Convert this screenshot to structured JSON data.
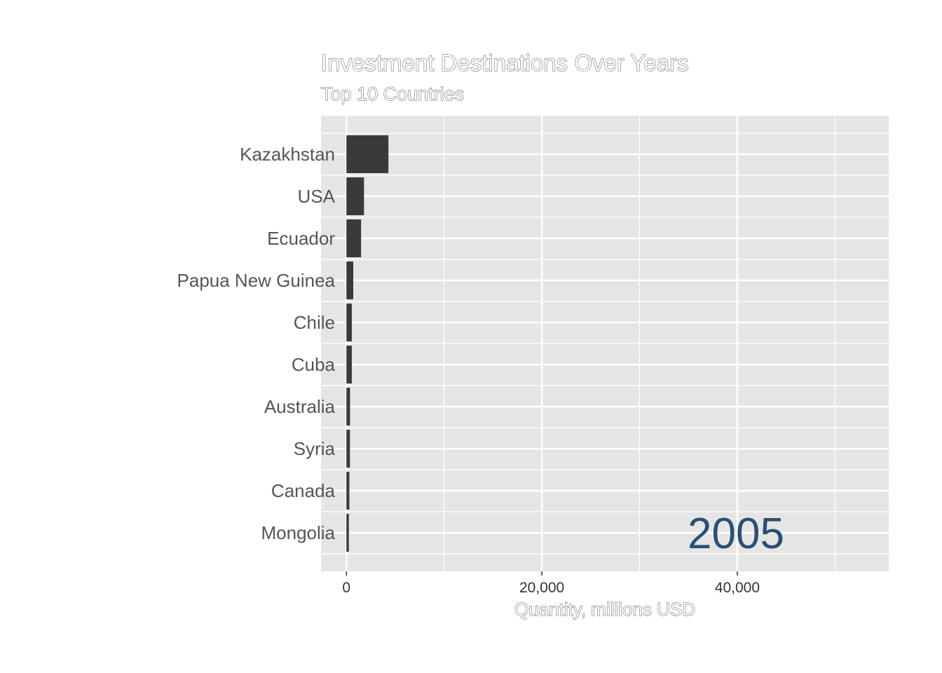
{
  "chart_data": {
    "type": "bar",
    "orientation": "horizontal",
    "title": "Investment Destinations Over Years",
    "subtitle": "Top 10 Countries",
    "xlabel": "Quantity, millions USD",
    "ylabel": "",
    "categories": [
      "Kazakhstan",
      "USA",
      "Ecuador",
      "Papua New Guinea",
      "Chile",
      "Cuba",
      "Australia",
      "Syria",
      "Canada",
      "Mongolia"
    ],
    "values": [
      4300,
      1800,
      1500,
      700,
      550,
      550,
      370,
      360,
      300,
      250
    ],
    "xlim": [
      -2600,
      55500
    ],
    "x_ticks": [
      0,
      20000,
      40000
    ],
    "x_tick_labels": [
      "0",
      "20,000",
      "40,000"
    ],
    "grid": true,
    "year": "2005",
    "colors": {
      "panel": "#e5e5e5",
      "bar": "#3a3a3a",
      "grid": "#ffffff",
      "year": "#2b4f74"
    }
  }
}
